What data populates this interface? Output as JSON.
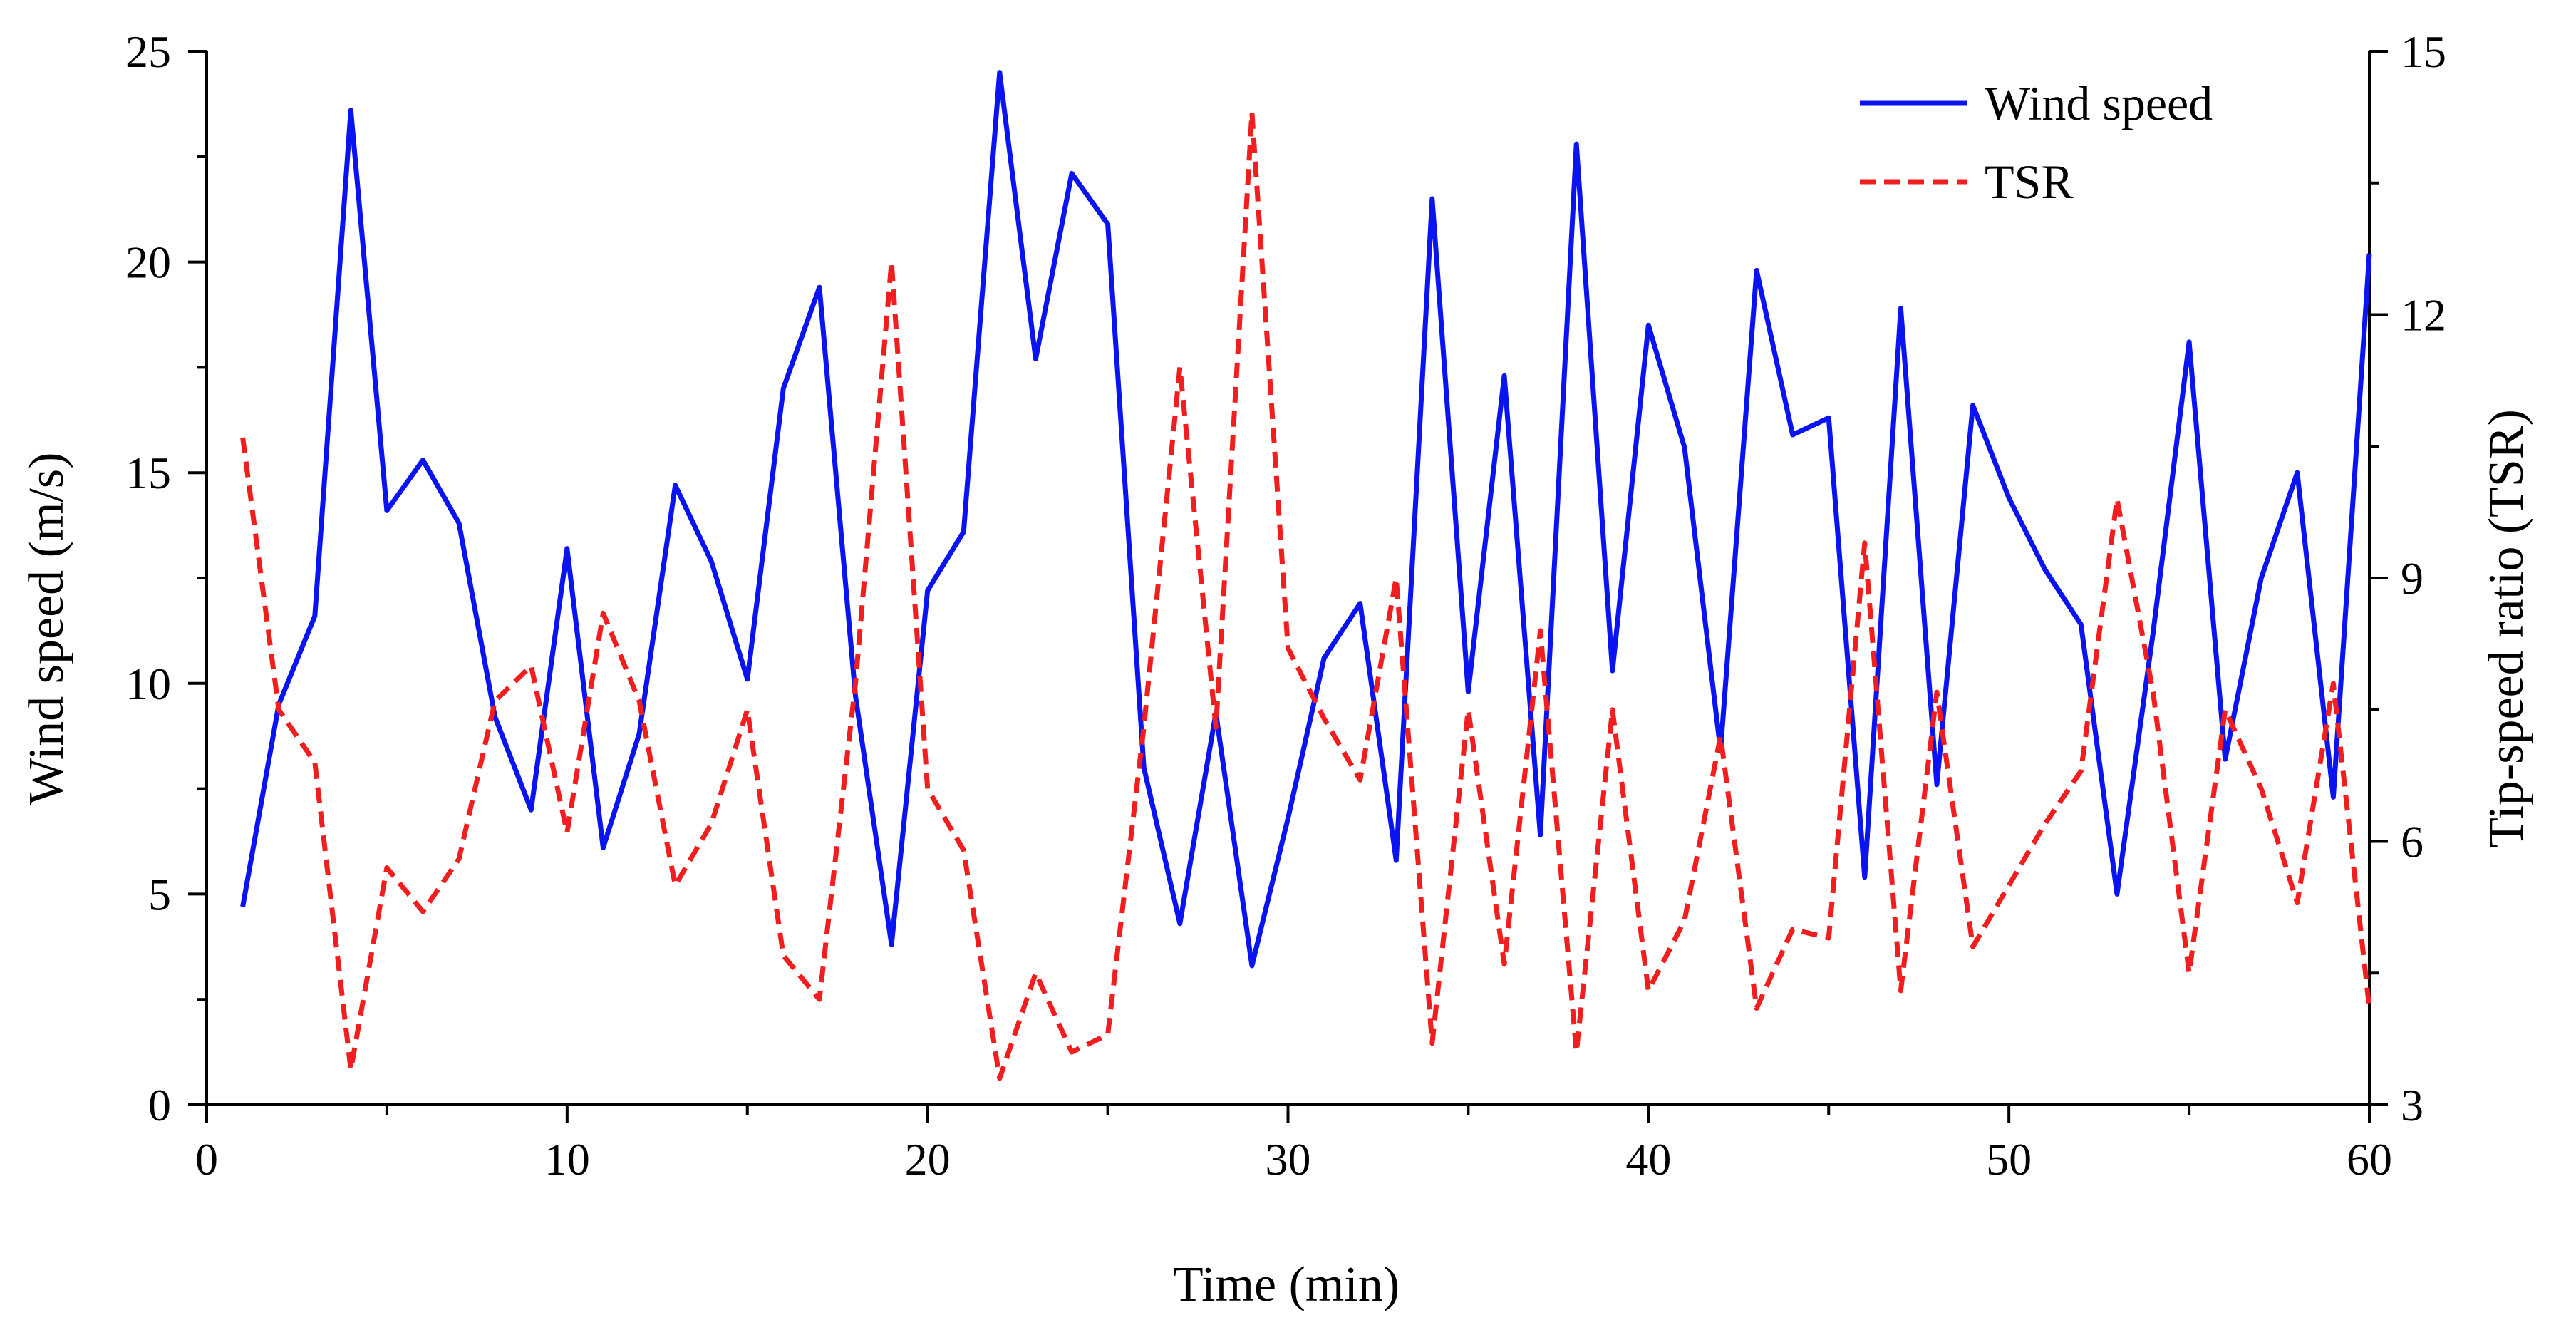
{
  "chart_data": {
    "type": "line",
    "title": "",
    "xlabel": "Time (min)",
    "ylabel": "Wind speed (m/s)",
    "y2label": "Tip-speed ratio (TSR)",
    "xlim": [
      0,
      60
    ],
    "ylim": [
      0,
      25
    ],
    "y2lim": [
      3,
      15
    ],
    "xticks": [
      0,
      10,
      20,
      30,
      40,
      50,
      60
    ],
    "yticks": [
      0,
      5,
      10,
      15,
      20,
      25
    ],
    "y2ticks": [
      3,
      6,
      9,
      12,
      15
    ],
    "grid": false,
    "legend_position": "top-right",
    "x": [
      1,
      2,
      3,
      4,
      5,
      6,
      7,
      8,
      9,
      10,
      11,
      12,
      13,
      14,
      15,
      16,
      17,
      18,
      19,
      20,
      21,
      22,
      23,
      24,
      25,
      26,
      27,
      28,
      29,
      30,
      31,
      32,
      33,
      34,
      35,
      36,
      37,
      38,
      39,
      40,
      41,
      42,
      43,
      44,
      45,
      46,
      47,
      48,
      49,
      50,
      51,
      52,
      53,
      54,
      55,
      56,
      57,
      58,
      59,
      60
    ],
    "series": [
      {
        "name": "Wind speed",
        "axis": "left",
        "color": "#0a14f0",
        "style": "solid",
        "values": [
          4.7,
          9.5,
          11.6,
          23.6,
          14.1,
          15.3,
          13.8,
          9.2,
          7.0,
          13.2,
          6.1,
          8.8,
          14.7,
          12.9,
          10.1,
          17.0,
          19.4,
          9.7,
          3.8,
          12.2,
          13.6,
          24.5,
          17.7,
          22.1,
          20.9,
          8.0,
          4.3,
          9.3,
          3.3,
          6.8,
          10.6,
          11.9,
          5.8,
          21.5,
          9.8,
          17.3,
          6.4,
          22.8,
          10.3,
          18.5,
          15.6,
          8.4,
          19.8,
          15.9,
          16.3,
          5.4,
          18.9,
          7.6,
          16.6,
          14.4,
          12.7,
          11.4,
          5.0,
          11.2,
          18.1,
          8.2,
          12.5,
          15.0,
          7.3,
          20.2
        ]
      },
      {
        "name": "TSR",
        "axis": "right",
        "color": "#f01e1e",
        "style": "dashed",
        "values": [
          10.6,
          7.5,
          6.9,
          3.4,
          5.7,
          5.2,
          5.8,
          7.6,
          8.0,
          6.1,
          8.6,
          7.6,
          5.5,
          6.2,
          7.5,
          4.7,
          4.2,
          7.8,
          12.6,
          6.6,
          5.9,
          3.3,
          4.5,
          3.6,
          3.8,
          7.3,
          11.4,
          7.3,
          14.3,
          8.2,
          7.4,
          6.7,
          9.0,
          3.7,
          7.5,
          4.6,
          8.4,
          3.6,
          7.5,
          4.3,
          5.1,
          7.2,
          4.1,
          5.0,
          4.9,
          9.4,
          4.3,
          7.7,
          4.8,
          5.5,
          6.2,
          6.8,
          9.9,
          7.7,
          4.5,
          7.5,
          6.6,
          5.3,
          7.8,
          4.1
        ]
      }
    ]
  }
}
